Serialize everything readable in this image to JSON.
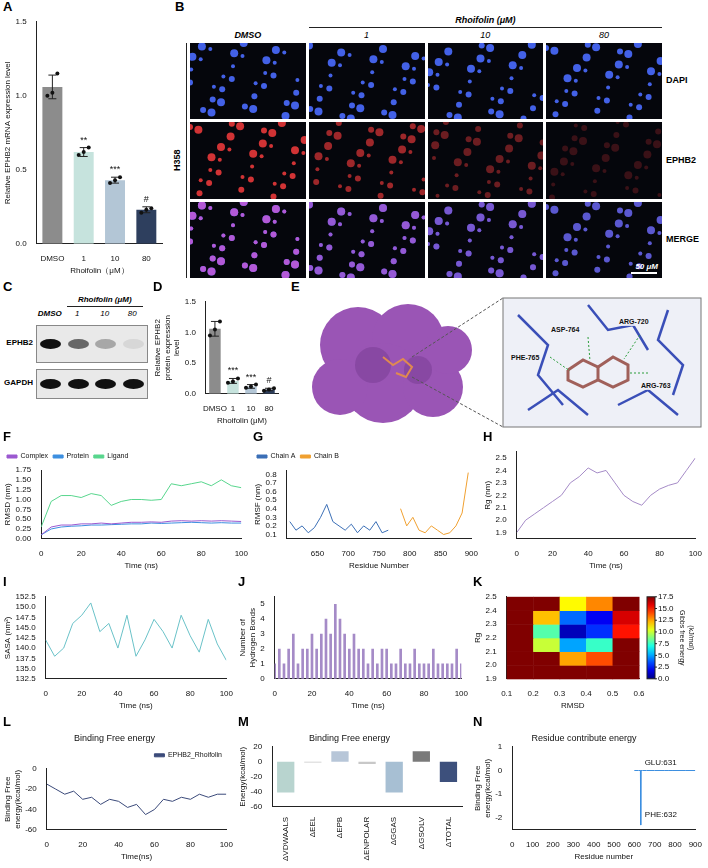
{
  "chart_data": [
    {
      "panel": "A",
      "type": "bar",
      "categories": [
        "DMSO",
        "1",
        "10",
        "80"
      ],
      "values": [
        1.06,
        0.62,
        0.43,
        0.23
      ],
      "errors": [
        0.08,
        0.03,
        0.02,
        0.02
      ],
      "points": [
        [
          1.0,
          1.02,
          1.15
        ],
        [
          0.6,
          0.62,
          0.65
        ],
        [
          0.41,
          0.43,
          0.45
        ],
        [
          0.21,
          0.23,
          0.24
        ]
      ],
      "annotations": [
        null,
        "**",
        "***",
        "#"
      ],
      "colors": [
        "#8c8c8c",
        "#c6e3dd",
        "#b3c6d6",
        "#2e3f5e"
      ],
      "x_label": "Rhoifolin（μM）",
      "y_label": "Relative EPHB2 mRNA expression level",
      "ylim": [
        0,
        1.5
      ],
      "yticks": [
        {
          "value": 0,
          "label": "0.0"
        },
        0.5,
        {
          "value": 1,
          "label": "1.0"
        },
        1.5
      ],
      "grid": false
    },
    {
      "panel": "D",
      "type": "bar",
      "categories": [
        "DMSO",
        "1",
        "10",
        "80"
      ],
      "values": [
        1.06,
        0.21,
        0.12,
        0.07
      ],
      "errors": [
        0.12,
        0.04,
        0.03,
        0.02
      ],
      "points": [
        [
          0.95,
          1.05,
          1.18
        ],
        [
          0.18,
          0.2,
          0.25
        ],
        [
          0.1,
          0.12,
          0.15
        ],
        [
          0.05,
          0.07,
          0.09
        ]
      ],
      "annotations": [
        null,
        "***",
        "***",
        "#"
      ],
      "colors": [
        "#8c8c8c",
        "#c6e3dd",
        "#b3c6d6",
        "#2e3f5e"
      ],
      "x_label": "Rhoifolin (μM)",
      "y_label": "Relative EPHB2 protein expression level",
      "ylim": [
        0,
        1.5
      ],
      "yticks": [
        {
          "value": 0,
          "label": "0.0"
        },
        0.5,
        {
          "value": 1,
          "label": "1.0"
        },
        1.5
      ],
      "grid": false
    },
    {
      "panel": "F",
      "type": "line",
      "x": [
        0,
        5,
        10,
        15,
        20,
        25,
        30,
        35,
        40,
        45,
        50,
        55,
        60,
        65,
        70,
        75,
        80,
        85,
        90,
        95,
        100
      ],
      "series": [
        {
          "name": "Complex",
          "color": "#9b59d0",
          "values": [
            0.1,
            0.3,
            0.35,
            0.35,
            0.38,
            0.38,
            0.4,
            0.38,
            0.4,
            0.42,
            0.42,
            0.43,
            0.42,
            0.45,
            0.46,
            0.45,
            0.46,
            0.45,
            0.46,
            0.45,
            0.44
          ]
        },
        {
          "name": "Protein",
          "color": "#3d8fe0",
          "values": [
            0.1,
            0.25,
            0.3,
            0.32,
            0.33,
            0.35,
            0.35,
            0.36,
            0.37,
            0.38,
            0.38,
            0.4,
            0.39,
            0.4,
            0.41,
            0.42,
            0.41,
            0.4,
            0.41,
            0.4,
            0.4
          ]
        },
        {
          "name": "Ligand",
          "color": "#58d68d",
          "values": [
            0.3,
            0.95,
            1.1,
            1.1,
            1.05,
            1.15,
            1.1,
            0.85,
            0.95,
            1.0,
            1.0,
            0.98,
            1.0,
            1.4,
            1.35,
            1.4,
            1.45,
            1.35,
            1.5,
            1.35,
            1.3
          ]
        }
      ],
      "x_label": "Time (ns)",
      "y_label": "RMSD (nm)",
      "xlim": [
        0,
        100
      ],
      "xticks": [
        0,
        20,
        40,
        60,
        80,
        100
      ],
      "ylim": [
        0,
        1.75
      ],
      "yticks": [
        {
          "value": 0,
          "label": "0.00"
        },
        0.25,
        {
          "value": 0.5,
          "label": "0.50"
        },
        0.75,
        {
          "value": 1,
          "label": "1.00"
        },
        1.25,
        {
          "value": 1.5,
          "label": "1.50"
        },
        1.75
      ],
      "legend": "top-left",
      "grid": false
    },
    {
      "panel": "G",
      "type": "line",
      "x": [
        605,
        615,
        625,
        635,
        645,
        655,
        665,
        675,
        685,
        695,
        705,
        715,
        725,
        735,
        745,
        755,
        765,
        775,
        785,
        795,
        805,
        815,
        825,
        835,
        845,
        855,
        865,
        875,
        885,
        895
      ],
      "series": [
        {
          "name": "Chain A",
          "color": "#3b6fb6",
          "values": [
            0.25,
            0.15,
            0.2,
            0.12,
            0.18,
            0.3,
            0.45,
            0.25,
            0.2,
            0.15,
            0.22,
            0.12,
            0.2,
            0.15,
            0.25,
            0.12,
            0.15,
            null,
            null,
            null,
            null,
            null,
            null,
            null,
            null,
            null,
            null,
            null,
            null,
            null
          ]
        },
        {
          "name": "Chain B",
          "color": "#f0a030",
          "values": [
            null,
            null,
            null,
            null,
            null,
            null,
            null,
            null,
            null,
            null,
            null,
            null,
            null,
            null,
            null,
            null,
            null,
            null,
            0.4,
            0.2,
            0.3,
            0.15,
            0.12,
            0.2,
            0.15,
            0.1,
            0.12,
            0.2,
            0.35,
            0.82
          ]
        }
      ],
      "x_label": "Residue Number",
      "y_label": "RMSF (nm)",
      "xlim": [
        600,
        900
      ],
      "xticks": [
        650,
        700,
        750,
        800,
        850,
        900
      ],
      "ylim": [
        0.05,
        0.85
      ],
      "yticks": [
        0.1,
        0.2,
        0.3,
        0.4,
        0.5,
        0.6,
        0.7,
        0.8
      ],
      "legend": "top-left",
      "grid": false
    },
    {
      "panel": "H",
      "type": "line",
      "x": [
        0,
        5,
        10,
        15,
        20,
        25,
        30,
        35,
        40,
        45,
        50,
        55,
        60,
        65,
        70,
        75,
        80,
        85,
        90,
        95,
        100
      ],
      "values": [
        1.9,
        2.0,
        2.05,
        2.1,
        2.15,
        2.2,
        2.3,
        2.35,
        2.42,
        2.38,
        2.4,
        2.3,
        2.2,
        2.15,
        2.12,
        2.2,
        2.25,
        2.28,
        2.3,
        2.4,
        2.5
      ],
      "color": "#a58bc7",
      "x_label": "Time (ns)",
      "y_label": "Rg (nm)",
      "xlim": [
        0,
        100
      ],
      "xticks": [
        0,
        20,
        40,
        60,
        80,
        100
      ],
      "ylim": [
        1.85,
        2.55
      ],
      "yticks": [
        1.9,
        {
          "value": 2,
          "label": "2.0"
        },
        2.1,
        2.2,
        2.3,
        2.4,
        2.5
      ],
      "grid": false
    },
    {
      "panel": "I",
      "type": "line",
      "x": [
        0,
        5,
        10,
        15,
        20,
        25,
        30,
        35,
        40,
        45,
        50,
        55,
        60,
        65,
        70,
        75,
        80,
        85,
        90,
        95,
        100
      ],
      "values": [
        142,
        138,
        140,
        146,
        148,
        151,
        144,
        146,
        140,
        148,
        138,
        142,
        147,
        144,
        140,
        148,
        143,
        139,
        147,
        141,
        137
      ],
      "color": "#6ac2c8",
      "x_label": "Time (ns)",
      "y_label": "SASA (nm²)",
      "xlim": [
        0,
        100
      ],
      "xticks": [
        0,
        20,
        40,
        60,
        80,
        100
      ],
      "ylim": [
        132.5,
        152.5
      ],
      "yticks": [
        132.5,
        {
          "value": 135,
          "label": "135.0"
        },
        137.5,
        {
          "value": 140,
          "label": "140.0"
        },
        142.5,
        {
          "value": 145,
          "label": "145.0"
        },
        147.5,
        {
          "value": 150,
          "label": "150.0"
        },
        152.5
      ],
      "grid": false
    },
    {
      "panel": "J",
      "type": "bar",
      "x": [
        0,
        2.5,
        5,
        7.5,
        10,
        12.5,
        15,
        17.5,
        20,
        22.5,
        25,
        27.5,
        30,
        32.5,
        35,
        37.5,
        40,
        42.5,
        45,
        47.5,
        50,
        52.5,
        55,
        57.5,
        60,
        62.5,
        65,
        67.5,
        70,
        72.5,
        75,
        77.5,
        80,
        82.5,
        85,
        87.5,
        90,
        92.5,
        95,
        97.5,
        100
      ],
      "values": [
        1,
        2,
        1,
        2,
        3,
        1,
        2,
        2,
        3,
        2,
        3,
        4,
        3,
        5,
        4,
        3,
        2,
        3,
        2,
        2,
        1,
        2,
        1,
        2,
        2,
        1,
        1,
        2,
        1,
        1,
        2,
        1,
        1,
        1,
        2,
        1,
        1,
        1,
        1,
        2,
        1
      ],
      "color": "#a58bc7",
      "x_label": "Time (ns)",
      "y_label": "Number of Hydrogen Bonds",
      "xlim": [
        0,
        100
      ],
      "xticks": [
        0,
        20,
        40,
        60,
        80,
        100
      ],
      "ylim": [
        0,
        5.5
      ],
      "yticks": [
        0,
        1,
        2,
        3,
        4,
        5
      ],
      "grid": false
    },
    {
      "panel": "K",
      "type": "heatmap",
      "x_label": "RMSD",
      "y_label": "Rg",
      "xbins": [
        0.1,
        0.2,
        0.3,
        0.4,
        0.5,
        0.6
      ],
      "ybins": [
        1.9,
        2.0,
        2.1,
        2.2,
        2.3,
        2.4,
        2.5
      ],
      "cells": [
        [
          17.5,
          17.5,
          17.5,
          17.5,
          17.5
        ],
        [
          17.5,
          17.5,
          12.5,
          14,
          17.5
        ],
        [
          17.5,
          10,
          5,
          7.5,
          17.5
        ],
        [
          17.5,
          8,
          1,
          3,
          15
        ],
        [
          17.5,
          12,
          4,
          2,
          16
        ],
        [
          17.5,
          17.5,
          11,
          13,
          17.5
        ]
      ],
      "xlim": [
        0.1,
        0.6
      ],
      "xticks": [
        0.1,
        0.2,
        0.3,
        0.4,
        0.5,
        0.6
      ],
      "ylim": [
        1.9,
        2.5
      ],
      "yticks": [
        1.9,
        {
          "value": 2,
          "label": "2.0"
        },
        2.1,
        2.2,
        2.3,
        2.4,
        2.5
      ],
      "colorbar": {
        "label": "Gibbs free energy (kJ/mol)",
        "range": [
          0,
          17.5
        ],
        "ticks": [
          {
            "value": 0,
            "label": "0.0"
          },
          2.5,
          {
            "value": 5,
            "label": "5.0"
          },
          7.5,
          {
            "value": 10,
            "label": "10.0"
          },
          12.5,
          {
            "value": 15,
            "label": "15.0"
          },
          17.5
        ]
      },
      "grid": false
    },
    {
      "panel": "L",
      "type": "line",
      "title": "Binding Free energy",
      "x": [
        0,
        5,
        10,
        15,
        20,
        25,
        30,
        35,
        40,
        45,
        50,
        55,
        60,
        65,
        70,
        75,
        80,
        85,
        90,
        95,
        100
      ],
      "series": [
        {
          "name": "EPHB2_Rhoifolin",
          "color": "#3b4a7a",
          "values": [
            -15,
            -20,
            -25,
            -22,
            -30,
            -28,
            -35,
            -30,
            -32,
            -38,
            -35,
            -45,
            -40,
            -30,
            -32,
            -28,
            -30,
            -25,
            -28,
            -25,
            -25
          ]
        }
      ],
      "x_label": "Time(ns)",
      "y_label": "Binding Free energy(kcal/mol)",
      "xlim": [
        0,
        100
      ],
      "xticks": [
        0,
        20,
        40,
        60,
        80,
        100
      ],
      "ylim": [
        -60,
        0
      ],
      "yticks": [
        -60,
        -40,
        -20,
        0
      ],
      "legend": "top-right",
      "grid": false
    },
    {
      "panel": "M",
      "type": "bar",
      "title": "Binding Free energy",
      "categories": [
        "ΔVDWAALS",
        "ΔEEL",
        "ΔEPB",
        "ΔENPOLAR",
        "ΔGGAS",
        "ΔGSOLV",
        "ΔTOTAL"
      ],
      "values": [
        -41,
        -1,
        14,
        -3,
        -41,
        14,
        -27
      ],
      "colors": [
        "#b8d4cf",
        "#c8c8c8",
        "#b7c6d8",
        "#c8c8c8",
        "#a7bfd3",
        "#7a7a7a",
        "#3d507c"
      ],
      "y_label": "Energy(kcal/mol)",
      "ylim": [
        -60,
        20
      ],
      "yticks": [
        -60,
        -40,
        -20,
        0,
        20
      ],
      "grid": false
    },
    {
      "panel": "N",
      "type": "line",
      "title": "Residue contribute energy",
      "x": [
        600,
        620,
        630,
        631,
        632,
        633,
        640,
        660,
        700,
        750,
        770,
        790,
        800,
        850,
        900
      ],
      "values": [
        0,
        0,
        0,
        -0.1,
        -2.3,
        0,
        0,
        0,
        0,
        0,
        0,
        0,
        0,
        0,
        0
      ],
      "color": "#3d8fe0",
      "annotations": [
        {
          "x": 631,
          "y": -0.1,
          "text": "GLU:631"
        },
        {
          "x": 632,
          "y": -2.3,
          "text": "PHE:632"
        }
      ],
      "x_label": "Residue number",
      "y_label": "Binding Free energy(kcal/mol)",
      "xlim": [
        0,
        900
      ],
      "xticks": [
        0,
        100,
        200,
        300,
        400,
        500,
        600,
        700,
        800,
        900
      ],
      "ylim": [
        -2.5,
        1
      ],
      "yticks": [
        -2,
        -1,
        0,
        1
      ],
      "grid": false
    }
  ],
  "images": [
    {
      "panel": "B",
      "type": "image_grid",
      "cell_line": "H358",
      "header": "Rhoifolin (μM)",
      "columns": [
        "DMSO",
        "1",
        "10",
        "80"
      ],
      "rows": [
        "DAPI",
        "EPHB2",
        "MERGE"
      ],
      "scale_bar": "50 μM"
    },
    {
      "panel": "C",
      "type": "western_blot",
      "header": "Rhoifolin (μM)",
      "lanes": [
        "DMSO",
        "1",
        "10",
        "80"
      ],
      "bands": [
        "EPHB2",
        "GAPDH"
      ]
    },
    {
      "panel": "E",
      "type": "docking",
      "residues": [
        "PHE-765",
        "ASP-764",
        "ARG-720",
        "ARG-763"
      ]
    }
  ]
}
